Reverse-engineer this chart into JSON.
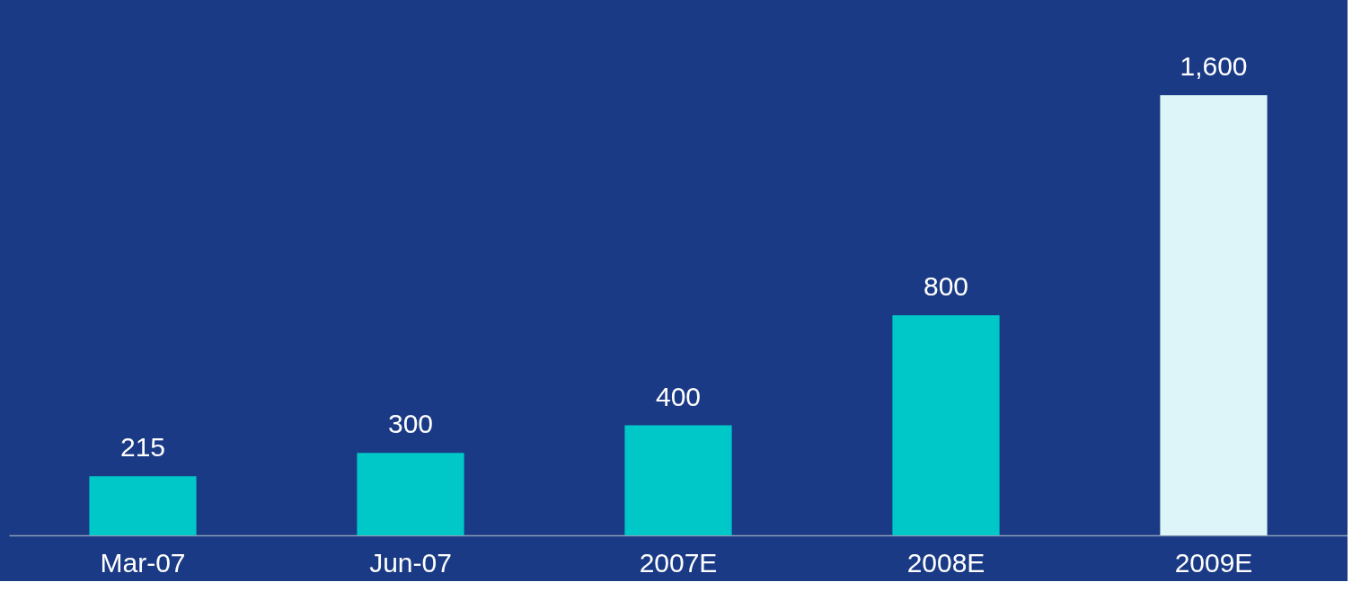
{
  "chart_data": {
    "type": "bar",
    "categories": [
      "Mar-07",
      "Jun-07",
      "2007E",
      "2008E",
      "2009E"
    ],
    "values": [
      215,
      300,
      400,
      800,
      1600
    ],
    "colors": [
      "#00c8c8",
      "#00c8c8",
      "#00c8c8",
      "#00c8c8",
      "#ddf5f8"
    ],
    "value_labels": [
      "215",
      "300",
      "400",
      "800",
      "1,600"
    ]
  }
}
